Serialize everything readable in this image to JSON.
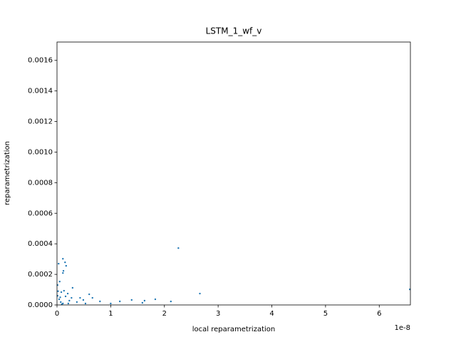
{
  "chart_data": {
    "type": "scatter",
    "title": "LSTM_1_wf_v",
    "x_label": "local reparametrization",
    "y_label": "reparametrization",
    "x_offset_label": "1e-8",
    "color": "#1f77b4",
    "xlim": [
      0,
      6.58
    ],
    "ylim": [
      0,
      0.00172
    ],
    "xticks": [
      0,
      1,
      2,
      3,
      4,
      5,
      6
    ],
    "yticks": [
      {
        "value": 0,
        "label": "0.0000"
      },
      {
        "value": 0.0002,
        "label": "0.0002"
      },
      {
        "value": 0.0004,
        "label": "0.0004"
      },
      {
        "value": 0.0006,
        "label": "0.0006"
      },
      {
        "value": 0.0008,
        "label": "0.0008"
      },
      {
        "value": 0.001,
        "label": "0.0010"
      },
      {
        "value": 0.0012,
        "label": "0.0012"
      },
      {
        "value": 0.0014,
        "label": "0.0014"
      },
      {
        "value": 0.0016,
        "label": "0.0016"
      }
    ],
    "x": [
      2.26,
      2.66,
      6.57,
      0.03,
      0.11,
      0.15,
      0.05,
      0.12,
      0.17,
      0.11,
      0.29,
      0.08,
      0.13,
      0.2,
      0.01,
      0.01,
      0.04,
      0.07,
      0.11,
      0.27,
      0.43,
      0.49,
      0.6,
      0.66,
      0.8,
      1.0,
      1.17,
      1.39,
      1.59,
      1.63,
      1.83,
      2.12,
      0.53,
      0.37,
      0.23,
      0.16,
      0.21,
      0.02,
      0.06,
      0.09
    ],
    "values": [
      0.000372,
      7.44e-05,
      0.000102,
      0.00027,
      0.000302,
      0.000279,
      0.000153,
      0.000223,
      0.000256,
      0.000209,
      0.000112,
      8.37e-05,
      9.3e-05,
      7.44e-05,
      0.00013,
      6e-05,
      3.7e-05,
      1.86e-05,
      9.3e-06,
      4.65e-05,
      4.65e-05,
      3.26e-05,
      6.98e-05,
      4.65e-05,
      2.33e-05,
      9.3e-06,
      2.33e-05,
      3.26e-05,
      1.4e-05,
      2.8e-05,
      3.7e-05,
      2.3e-05,
      9.3e-06,
      1.9e-05,
      2.8e-05,
      5.6e-05,
      9.3e-06,
      9e-05,
      5e-05,
      5e-06
    ]
  }
}
